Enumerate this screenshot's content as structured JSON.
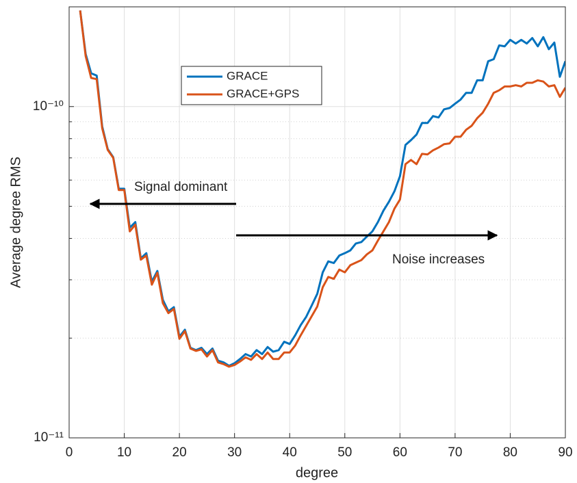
{
  "chart_data": {
    "type": "line",
    "xlabel": "degree",
    "ylabel": "Average degree RMS",
    "log_y": true,
    "grid": true,
    "minor_grid": true,
    "legend_location": "north",
    "xlim": [
      0,
      90
    ],
    "xticks": [
      0,
      10,
      20,
      30,
      40,
      50,
      60,
      70,
      80,
      90
    ],
    "ylim": [
      1e-11,
      2e-10
    ],
    "yticks": [
      {
        "value": 1e-11,
        "label": "10⁻¹¹"
      },
      {
        "value": 1e-10,
        "label": "10⁻¹⁰"
      }
    ],
    "yminorticks": [
      2e-11,
      3e-11,
      4e-11,
      5e-11,
      6e-11,
      7e-11,
      8e-11,
      9e-11
    ],
    "annotations": [
      "Signal dominant",
      "Noise increases"
    ],
    "x": [
      2,
      3,
      4,
      5,
      6,
      7,
      8,
      9,
      10,
      11,
      12,
      13,
      14,
      15,
      16,
      17,
      18,
      19,
      20,
      21,
      22,
      23,
      24,
      25,
      26,
      27,
      28,
      29,
      30,
      31,
      32,
      33,
      34,
      35,
      36,
      37,
      38,
      39,
      40,
      41,
      42,
      43,
      44,
      45,
      46,
      47,
      48,
      49,
      50,
      51,
      52,
      53,
      54,
      55,
      56,
      57,
      58,
      59,
      60,
      61,
      62,
      63,
      64,
      65,
      66,
      67,
      68,
      69,
      70,
      71,
      72,
      73,
      74,
      75,
      76,
      77,
      78,
      79,
      80,
      81,
      82,
      83,
      84,
      85,
      86,
      87,
      88,
      89,
      90
    ],
    "series": [
      {
        "name": "GRACE",
        "color": "#0072bd",
        "values": [
          1.95e-10,
          1.44e-10,
          1.26e-10,
          1.24e-10,
          8.71e-11,
          7.44e-11,
          7.03e-11,
          5.65e-11,
          5.65e-11,
          4.31e-11,
          4.48e-11,
          3.48e-11,
          3.61e-11,
          2.96e-11,
          3.19e-11,
          2.61e-11,
          2.41e-11,
          2.48e-11,
          2.02e-11,
          2.12e-11,
          1.87e-11,
          1.84e-11,
          1.87e-11,
          1.79e-11,
          1.86e-11,
          1.71e-11,
          1.69e-11,
          1.65e-11,
          1.68e-11,
          1.73e-11,
          1.79e-11,
          1.76e-11,
          1.84e-11,
          1.79e-11,
          1.88e-11,
          1.82e-11,
          1.84e-11,
          1.95e-11,
          1.92e-11,
          2.04e-11,
          2.19e-11,
          2.32e-11,
          2.51e-11,
          2.72e-11,
          3.16e-11,
          3.41e-11,
          3.37e-11,
          3.55e-11,
          3.61e-11,
          3.68e-11,
          3.86e-11,
          3.9e-11,
          4.05e-11,
          4.2e-11,
          4.48e-11,
          4.85e-11,
          5.16e-11,
          5.55e-11,
          6.16e-11,
          7.66e-11,
          7.92e-11,
          8.23e-11,
          8.92e-11,
          8.92e-11,
          9.36e-11,
          9.27e-11,
          9.81e-11,
          9.9e-11,
          1.02e-10,
          1.05e-10,
          1.1e-10,
          1.1e-10,
          1.2e-10,
          1.2e-10,
          1.37e-10,
          1.39e-10,
          1.53e-10,
          1.52e-10,
          1.59e-10,
          1.55e-10,
          1.59e-10,
          1.55e-10,
          1.61e-10,
          1.52e-10,
          1.62e-10,
          1.49e-10,
          1.56e-10,
          1.23e-10,
          1.37e-10
        ]
      },
      {
        "name": "GRACE+GPS",
        "color": "#d95319",
        "values": [
          1.95e-10,
          1.42e-10,
          1.22e-10,
          1.21e-10,
          8.6e-11,
          7.4e-11,
          7e-11,
          5.6e-11,
          5.6e-11,
          4.2e-11,
          4.4e-11,
          3.45e-11,
          3.55e-11,
          2.9e-11,
          3.15e-11,
          2.55e-11,
          2.38e-11,
          2.45e-11,
          1.99e-11,
          2.1e-11,
          1.86e-11,
          1.83e-11,
          1.85e-11,
          1.76e-11,
          1.84e-11,
          1.69e-11,
          1.67e-11,
          1.64e-11,
          1.66e-11,
          1.7e-11,
          1.75e-11,
          1.72e-11,
          1.79e-11,
          1.73e-11,
          1.81e-11,
          1.73e-11,
          1.73e-11,
          1.81e-11,
          1.81e-11,
          1.9e-11,
          2.04e-11,
          2.18e-11,
          2.33e-11,
          2.49e-11,
          2.85e-11,
          3.06e-11,
          3.02e-11,
          3.22e-11,
          3.16e-11,
          3.32e-11,
          3.38e-11,
          3.44e-11,
          3.58e-11,
          3.68e-11,
          3.94e-11,
          4.2e-11,
          4.48e-11,
          4.92e-11,
          5.24e-11,
          6.7e-11,
          6.9e-11,
          6.7e-11,
          7.2e-11,
          7.17e-11,
          7.38e-11,
          7.52e-11,
          7.7e-11,
          7.74e-11,
          8.11e-11,
          8.11e-11,
          8.51e-11,
          8.75e-11,
          9.22e-11,
          9.58e-11,
          1.02e-10,
          1.1e-10,
          1.12e-10,
          1.15e-10,
          1.15e-10,
          1.16e-10,
          1.15e-10,
          1.18e-10,
          1.18e-10,
          1.2e-10,
          1.19e-10,
          1.15e-10,
          1.16e-10,
          1.07e-10,
          1.14e-10
        ]
      }
    ]
  }
}
